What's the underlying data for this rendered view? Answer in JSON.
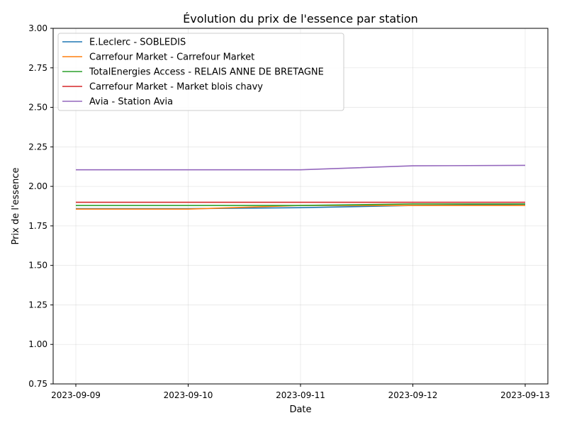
{
  "chart_data": {
    "type": "line",
    "title": "Évolution du prix de l'essence par station",
    "xlabel": "Date",
    "ylabel": "Prix de l'essence",
    "x": [
      "2023-09-09",
      "2023-09-10",
      "2023-09-11",
      "2023-09-12",
      "2023-09-13"
    ],
    "ylim": [
      0.75,
      3.0
    ],
    "yticks": [
      "0.75",
      "1.00",
      "1.25",
      "1.50",
      "1.75",
      "2.00",
      "2.25",
      "2.50",
      "2.75",
      "3.00"
    ],
    "grid": true,
    "legend_position": "top-left",
    "series": [
      {
        "name": "E.Leclerc - SOBLEDIS",
        "color": "#1f77b4",
        "values": [
          1.859,
          1.859,
          1.865,
          1.879,
          1.886
        ]
      },
      {
        "name": "Carrefour Market - Carrefour Market",
        "color": "#ff7f0e",
        "values": [
          1.856,
          1.856,
          1.879,
          1.879,
          1.879
        ]
      },
      {
        "name": "TotalEnergies Access - RELAIS ANNE DE BRETAGNE",
        "color": "#2ca02c",
        "values": [
          1.879,
          1.879,
          1.879,
          1.889,
          1.889
        ]
      },
      {
        "name": "Carrefour Market - Market blois chavy",
        "color": "#d62728",
        "values": [
          1.899,
          1.899,
          1.899,
          1.899,
          1.899
        ]
      },
      {
        "name": "Avia - Station Avia",
        "color": "#9467bd",
        "values": [
          2.105,
          2.105,
          2.105,
          2.13,
          2.133
        ]
      }
    ]
  }
}
